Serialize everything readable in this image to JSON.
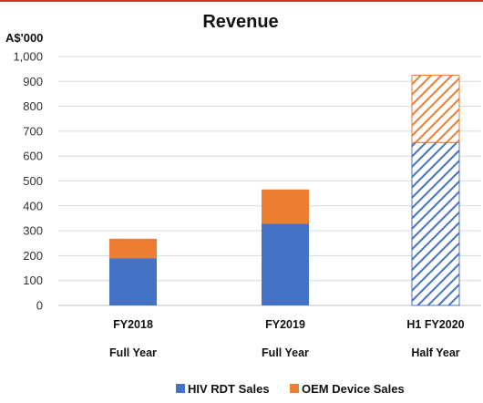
{
  "chart_data": {
    "type": "bar",
    "stacked": true,
    "title": "Revenue",
    "unit_label": "A$'000",
    "ylim": [
      0,
      1000
    ],
    "yticks": [
      "0",
      "100",
      "200",
      "300",
      "400",
      "500",
      "600",
      "700",
      "800",
      "900",
      "1,000"
    ],
    "ytick_values": [
      0,
      100,
      200,
      300,
      400,
      500,
      600,
      700,
      800,
      900,
      1000
    ],
    "grid": true,
    "categories": [
      "FY2018",
      "FY2019",
      "H1 FY2020"
    ],
    "period_labels": [
      "Full Year",
      "Full Year",
      "Half Year"
    ],
    "hatched": [
      false,
      false,
      true
    ],
    "series": [
      {
        "name": "HIV RDT Sales",
        "values": [
          190,
          328,
          655
        ],
        "color": "#4472c4"
      },
      {
        "name": "OEM Device Sales",
        "values": [
          78,
          138,
          270
        ],
        "color": "#ed7d31"
      }
    ],
    "legend_position": "bottom"
  }
}
